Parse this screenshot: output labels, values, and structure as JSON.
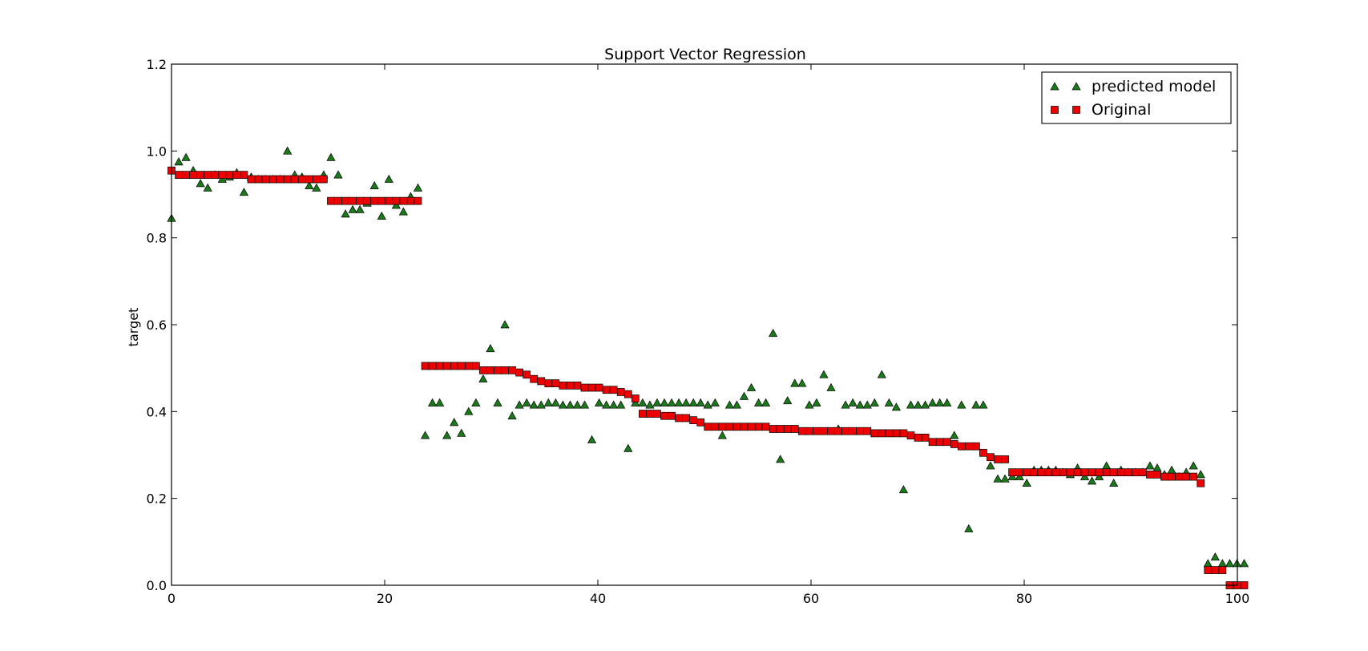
{
  "chart_data": {
    "type": "scatter",
    "title": "Support Vector Regression",
    "xlabel": "",
    "ylabel": "target",
    "xlim": [
      0,
      100
    ],
    "ylim": [
      0,
      1.2
    ],
    "x_ticks": [
      0,
      20,
      40,
      60,
      80,
      100
    ],
    "y_ticks": [
      0.0,
      0.2,
      0.4,
      0.6,
      0.8,
      1.0,
      1.2
    ],
    "x_tick_labels": [
      "0",
      "20",
      "40",
      "60",
      "80",
      "100"
    ],
    "y_tick_labels": [
      "0.0",
      "0.2",
      "0.4",
      "0.6",
      "0.8",
      "1.0",
      "1.2"
    ],
    "grid": false,
    "legend_position": "top-right",
    "x_step": 0.68,
    "series": [
      {
        "name": "predicted model",
        "marker": "triangle",
        "color": "#1a7a1a",
        "values": [
          0.845,
          0.975,
          0.985,
          0.955,
          0.925,
          0.915,
          0.945,
          0.935,
          0.94,
          0.95,
          0.905,
          0.94,
          0.935,
          0.935,
          0.935,
          0.935,
          1.0,
          0.945,
          0.94,
          0.92,
          0.915,
          0.945,
          0.985,
          0.945,
          0.855,
          0.865,
          0.865,
          0.88,
          0.92,
          0.85,
          0.935,
          0.875,
          0.86,
          0.895,
          0.915,
          0.345,
          0.42,
          0.42,
          0.345,
          0.375,
          0.35,
          0.4,
          0.42,
          0.475,
          0.545,
          0.42,
          0.6,
          0.39,
          0.415,
          0.42,
          0.415,
          0.415,
          0.42,
          0.42,
          0.415,
          0.415,
          0.415,
          0.415,
          0.335,
          0.42,
          0.415,
          0.415,
          0.415,
          0.315,
          0.42,
          0.42,
          0.415,
          0.42,
          0.42,
          0.42,
          0.42,
          0.42,
          0.42,
          0.42,
          0.415,
          0.42,
          0.345,
          0.415,
          0.415,
          0.435,
          0.455,
          0.42,
          0.42,
          0.58,
          0.29,
          0.425,
          0.465,
          0.465,
          0.415,
          0.42,
          0.485,
          0.455,
          0.36,
          0.415,
          0.42,
          0.415,
          0.415,
          0.42,
          0.485,
          0.42,
          0.41,
          0.22,
          0.415,
          0.415,
          0.415,
          0.42,
          0.42,
          0.42,
          0.345,
          0.415,
          0.13,
          0.415,
          0.415,
          0.275,
          0.245,
          0.245,
          0.25,
          0.25,
          0.235,
          0.265,
          0.265,
          0.265,
          0.265,
          0.26,
          0.255,
          0.27,
          0.25,
          0.24,
          0.25,
          0.275,
          0.235,
          0.265,
          0.26,
          0.26,
          0.26,
          0.275,
          0.27,
          0.255,
          0.265,
          0.25,
          0.26,
          0.275,
          0.255,
          0.05,
          0.065,
          0.05,
          0.05,
          0.05,
          0.05
        ]
      },
      {
        "name": "Original",
        "marker": "square",
        "color": "#ee0000",
        "values": [
          0.955,
          0.945,
          0.945,
          0.945,
          0.945,
          0.945,
          0.945,
          0.945,
          0.945,
          0.945,
          0.945,
          0.935,
          0.935,
          0.935,
          0.935,
          0.935,
          0.935,
          0.935,
          0.935,
          0.935,
          0.935,
          0.935,
          0.885,
          0.885,
          0.885,
          0.885,
          0.885,
          0.885,
          0.885,
          0.885,
          0.885,
          0.885,
          0.885,
          0.885,
          0.885,
          0.505,
          0.505,
          0.505,
          0.505,
          0.505,
          0.505,
          0.505,
          0.505,
          0.495,
          0.495,
          0.495,
          0.495,
          0.495,
          0.49,
          0.485,
          0.475,
          0.47,
          0.465,
          0.465,
          0.46,
          0.46,
          0.46,
          0.455,
          0.455,
          0.455,
          0.45,
          0.45,
          0.445,
          0.44,
          0.43,
          0.395,
          0.395,
          0.395,
          0.39,
          0.39,
          0.385,
          0.385,
          0.38,
          0.375,
          0.365,
          0.365,
          0.365,
          0.365,
          0.365,
          0.365,
          0.365,
          0.365,
          0.365,
          0.36,
          0.36,
          0.36,
          0.36,
          0.355,
          0.355,
          0.355,
          0.355,
          0.355,
          0.355,
          0.355,
          0.355,
          0.355,
          0.355,
          0.35,
          0.35,
          0.35,
          0.35,
          0.35,
          0.345,
          0.34,
          0.34,
          0.33,
          0.33,
          0.33,
          0.325,
          0.32,
          0.32,
          0.32,
          0.305,
          0.295,
          0.29,
          0.29,
          0.26,
          0.26,
          0.26,
          0.26,
          0.26,
          0.26,
          0.26,
          0.26,
          0.26,
          0.26,
          0.26,
          0.26,
          0.26,
          0.26,
          0.26,
          0.26,
          0.26,
          0.26,
          0.26,
          0.255,
          0.255,
          0.25,
          0.25,
          0.25,
          0.25,
          0.25,
          0.235,
          0.035,
          0.035,
          0.035,
          0.0,
          0.0,
          0.0
        ]
      }
    ]
  }
}
